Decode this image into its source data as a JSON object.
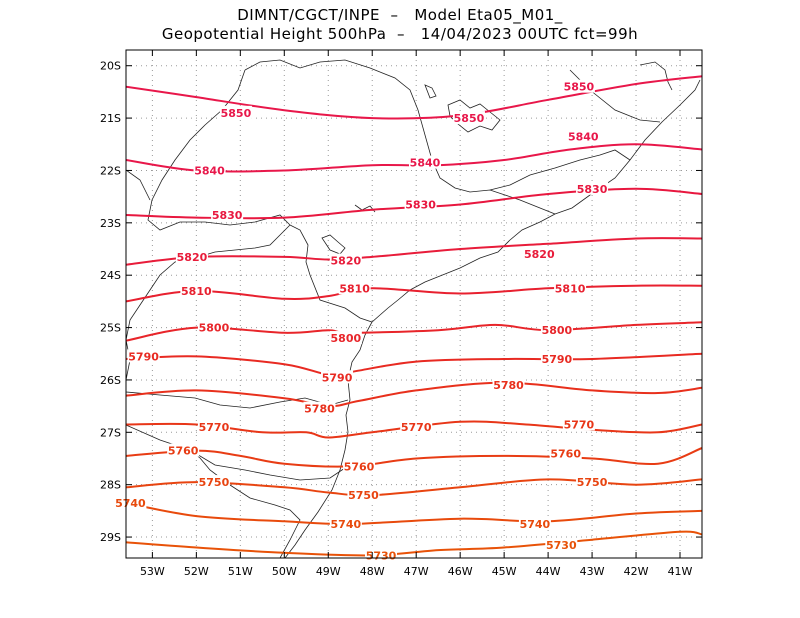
{
  "title_line1": "DIMNT/CGCT/INPE  –   Model Eta05_M01_",
  "title_line2": "Geopotential Height 500hPa  –   14/04/2023 00UTC fct=99h",
  "chart_data": {
    "type": "contour",
    "variable": "Geopotential Height 500hPa",
    "lon_range": [
      -53.6,
      -40.5
    ],
    "lat_range": [
      -29.4,
      -19.7
    ],
    "x_ticks": [
      -53,
      -52,
      -51,
      -50,
      -49,
      -48,
      -47,
      -46,
      -45,
      -44,
      -43,
      -42,
      -41
    ],
    "x_tick_labels": [
      "53W",
      "52W",
      "51W",
      "50W",
      "49W",
      "48W",
      "47W",
      "46W",
      "45W",
      "44W",
      "43W",
      "42W",
      "41W"
    ],
    "y_ticks": [
      -20,
      -21,
      -22,
      -23,
      -24,
      -25,
      -26,
      -27,
      -28,
      -29
    ],
    "y_tick_labels": [
      "20S",
      "21S",
      "22S",
      "23S",
      "24S",
      "25S",
      "26S",
      "27S",
      "28S",
      "29S"
    ],
    "grid": "dotted",
    "contour_interval": 10,
    "contours": [
      {
        "level": 5850,
        "color": "#e8174a",
        "label": "5850",
        "points": [
          [
            -53.6,
            -20.4
          ],
          [
            -52,
            -20.6
          ],
          [
            -50,
            -20.85
          ],
          [
            -48,
            -21.0
          ],
          [
            -46,
            -20.95
          ],
          [
            -44,
            -20.65
          ],
          [
            -42,
            -20.35
          ],
          [
            -40.5,
            -20.2
          ]
        ],
        "labels": [
          [
            -51.1,
            -20.9
          ],
          [
            -45.8,
            -21.0
          ],
          [
            -43.3,
            -20.4
          ]
        ]
      },
      {
        "level": 5840,
        "color": "#e8174a",
        "label": "5840",
        "points": [
          [
            -53.6,
            -21.8
          ],
          [
            -52,
            -22.0
          ],
          [
            -50,
            -22.0
          ],
          [
            -48,
            -21.9
          ],
          [
            -46.5,
            -21.9
          ],
          [
            -45,
            -21.8
          ],
          [
            -43.5,
            -21.6
          ],
          [
            -42,
            -21.5
          ],
          [
            -40.5,
            -21.6
          ]
        ],
        "labels": [
          [
            -51.7,
            -22.0
          ],
          [
            -46.8,
            -21.85
          ],
          [
            -43.2,
            -21.35
          ]
        ]
      },
      {
        "level": 5830,
        "color": "#e8173f",
        "label": "5830",
        "points": [
          [
            -53.6,
            -22.85
          ],
          [
            -52,
            -22.9
          ],
          [
            -50,
            -22.9
          ],
          [
            -48,
            -22.75
          ],
          [
            -46,
            -22.65
          ],
          [
            -44,
            -22.45
          ],
          [
            -42,
            -22.35
          ],
          [
            -40.5,
            -22.45
          ]
        ],
        "labels": [
          [
            -51.3,
            -22.85
          ],
          [
            -46.9,
            -22.65
          ],
          [
            -43.0,
            -22.35
          ]
        ]
      },
      {
        "level": 5820,
        "color": "#e81c3a",
        "label": "5820",
        "points": [
          [
            -53.6,
            -23.8
          ],
          [
            -52,
            -23.65
          ],
          [
            -50,
            -23.65
          ],
          [
            -49,
            -23.7
          ],
          [
            -48,
            -23.65
          ],
          [
            -46,
            -23.5
          ],
          [
            -44,
            -23.4
          ],
          [
            -42,
            -23.3
          ],
          [
            -40.5,
            -23.3
          ]
        ],
        "labels": [
          [
            -52.1,
            -23.65
          ],
          [
            -48.6,
            -23.72
          ],
          [
            -44.2,
            -23.6
          ]
        ]
      },
      {
        "level": 5810,
        "color": "#e8202f",
        "label": "5810",
        "points": [
          [
            -53.6,
            -24.5
          ],
          [
            -52,
            -24.3
          ],
          [
            -50,
            -24.45
          ],
          [
            -49,
            -24.4
          ],
          [
            -48,
            -24.25
          ],
          [
            -46,
            -24.35
          ],
          [
            -44,
            -24.25
          ],
          [
            -42,
            -24.2
          ],
          [
            -40.5,
            -24.2
          ]
        ],
        "labels": [
          [
            -52.0,
            -24.3
          ],
          [
            -48.4,
            -24.25
          ],
          [
            -43.5,
            -24.25
          ]
        ]
      },
      {
        "level": 5800,
        "color": "#e8252a",
        "label": "5800",
        "points": [
          [
            -53.6,
            -25.25
          ],
          [
            -52,
            -25.0
          ],
          [
            -50,
            -25.1
          ],
          [
            -49,
            -25.05
          ],
          [
            -48.5,
            -25.1
          ],
          [
            -46.5,
            -25.05
          ],
          [
            -45.2,
            -24.95
          ],
          [
            -44,
            -25.05
          ],
          [
            -42,
            -24.95
          ],
          [
            -40.5,
            -24.9
          ]
        ],
        "labels": [
          [
            -51.6,
            -25.0
          ],
          [
            -48.6,
            -25.2
          ],
          [
            -43.8,
            -25.05
          ]
        ]
      },
      {
        "level": 5790,
        "color": "#e82a22",
        "label": "5790",
        "points": [
          [
            -53.6,
            -25.6
          ],
          [
            -52,
            -25.55
          ],
          [
            -50,
            -25.7
          ],
          [
            -49,
            -25.9
          ],
          [
            -48.5,
            -25.85
          ],
          [
            -47,
            -25.65
          ],
          [
            -45,
            -25.6
          ],
          [
            -43,
            -25.6
          ],
          [
            -40.5,
            -25.5
          ]
        ],
        "labels": [
          [
            -53.2,
            -25.55
          ],
          [
            -48.8,
            -25.95
          ],
          [
            -43.8,
            -25.6
          ]
        ]
      },
      {
        "level": 5780,
        "color": "#e8301c",
        "label": "5780",
        "points": [
          [
            -53.6,
            -26.3
          ],
          [
            -52,
            -26.2
          ],
          [
            -50,
            -26.35
          ],
          [
            -49,
            -26.5
          ],
          [
            -48.3,
            -26.4
          ],
          [
            -47,
            -26.2
          ],
          [
            -45,
            -26.05
          ],
          [
            -43,
            -26.2
          ],
          [
            -41.5,
            -26.25
          ],
          [
            -40.5,
            -26.15
          ]
        ],
        "labels": [
          [
            -49.2,
            -26.55
          ],
          [
            -44.9,
            -26.1
          ]
        ]
      },
      {
        "level": 5770,
        "color": "#e83618",
        "label": "5770",
        "points": [
          [
            -53.6,
            -26.85
          ],
          [
            -52,
            -26.85
          ],
          [
            -50.5,
            -27.0
          ],
          [
            -49.5,
            -27.0
          ],
          [
            -49,
            -27.1
          ],
          [
            -48,
            -27.0
          ],
          [
            -46,
            -26.8
          ],
          [
            -44.5,
            -26.85
          ],
          [
            -43,
            -26.95
          ],
          [
            -41.5,
            -27.0
          ],
          [
            -40.5,
            -26.85
          ]
        ],
        "labels": [
          [
            -51.6,
            -26.9
          ],
          [
            -47.0,
            -26.9
          ],
          [
            -43.3,
            -26.85
          ]
        ]
      },
      {
        "level": 5760,
        "color": "#e83c14",
        "label": "5760",
        "points": [
          [
            -53.6,
            -27.45
          ],
          [
            -52,
            -27.35
          ],
          [
            -51,
            -27.45
          ],
          [
            -50,
            -27.6
          ],
          [
            -48.5,
            -27.65
          ],
          [
            -47,
            -27.5
          ],
          [
            -45,
            -27.45
          ],
          [
            -43,
            -27.5
          ],
          [
            -41.5,
            -27.6
          ],
          [
            -40.5,
            -27.3
          ]
        ],
        "labels": [
          [
            -52.3,
            -27.35
          ],
          [
            -48.3,
            -27.65
          ],
          [
            -43.6,
            -27.4
          ]
        ]
      },
      {
        "level": 5750,
        "color": "#e84410",
        "label": "5750",
        "points": [
          [
            -53.6,
            -28.05
          ],
          [
            -52,
            -27.95
          ],
          [
            -50,
            -28.05
          ],
          [
            -49,
            -28.15
          ],
          [
            -48,
            -28.2
          ],
          [
            -46,
            -28.05
          ],
          [
            -44,
            -27.9
          ],
          [
            -42,
            -28.0
          ],
          [
            -40.5,
            -27.9
          ]
        ],
        "labels": [
          [
            -51.6,
            -27.95
          ],
          [
            -48.2,
            -28.2
          ],
          [
            -43.0,
            -27.95
          ]
        ]
      },
      {
        "level": 5740,
        "color": "#e84a0c",
        "label": "5740",
        "points": [
          [
            -53.6,
            -28.35
          ],
          [
            -52,
            -28.6
          ],
          [
            -50,
            -28.7
          ],
          [
            -48.5,
            -28.75
          ],
          [
            -46,
            -28.65
          ],
          [
            -44,
            -28.7
          ],
          [
            -42,
            -28.55
          ],
          [
            -40.5,
            -28.5
          ]
        ],
        "labels": [
          [
            -53.5,
            -28.35
          ],
          [
            -48.6,
            -28.75
          ],
          [
            -44.3,
            -28.75
          ]
        ]
      },
      {
        "level": 5730,
        "color": "#e85208",
        "label": "5730",
        "points": [
          [
            -53.6,
            -29.1
          ],
          [
            -52,
            -29.2
          ],
          [
            -50,
            -29.3
          ],
          [
            -48,
            -29.35
          ],
          [
            -46.5,
            -29.25
          ],
          [
            -45,
            -29.2
          ],
          [
            -43,
            -29.05
          ],
          [
            -41,
            -28.9
          ],
          [
            -40.5,
            -28.95
          ]
        ],
        "labels": [
          [
            -47.8,
            -29.35
          ],
          [
            -43.7,
            -29.15
          ]
        ]
      }
    ]
  }
}
